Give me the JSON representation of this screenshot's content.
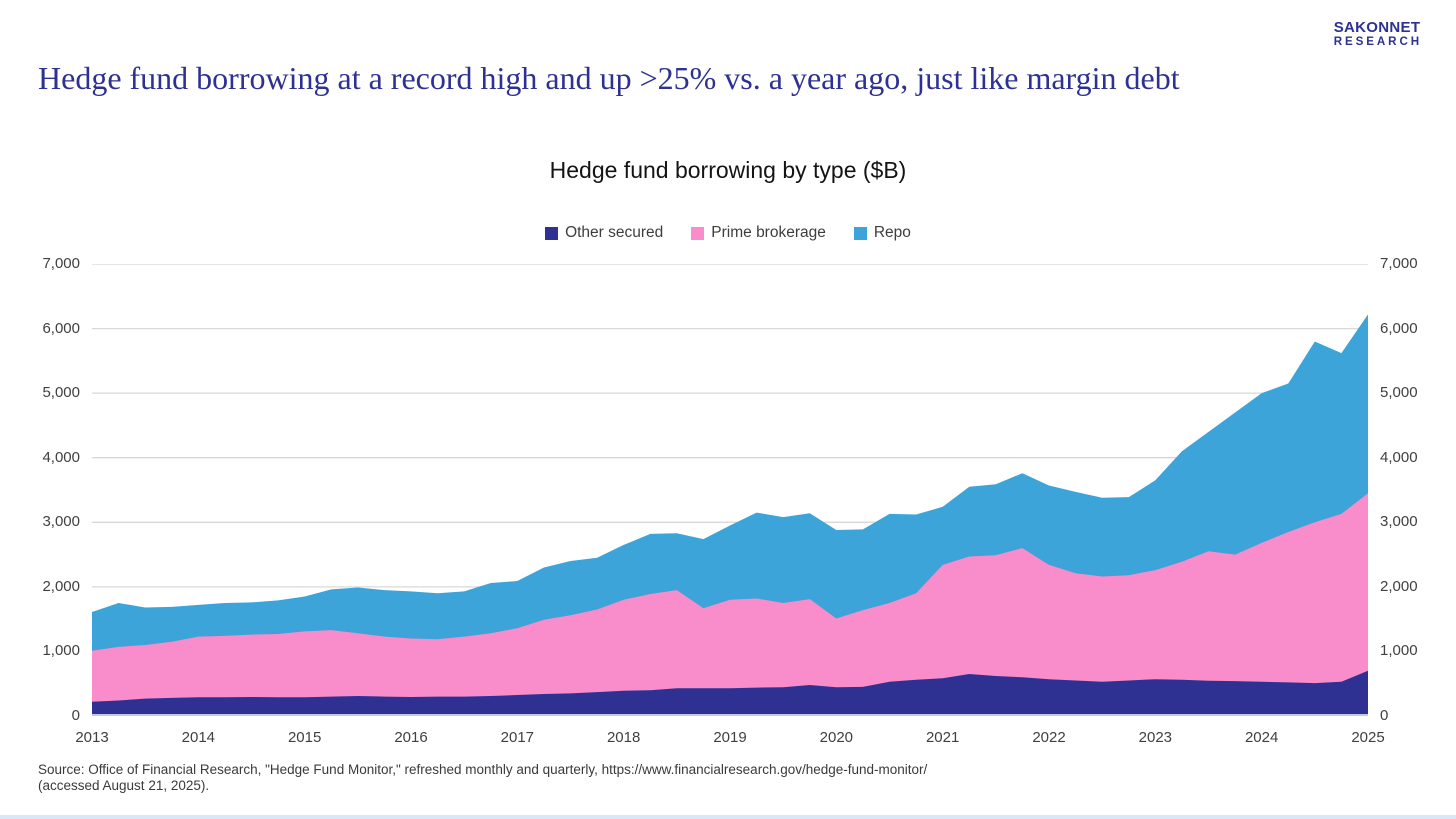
{
  "logo": {
    "line1": "SAKONNET",
    "line2": "RESEARCH"
  },
  "headline": "Hedge fund borrowing at a record high and up >25% vs. a year ago, just like margin debt",
  "chart": {
    "title": "Hedge fund borrowing by type ($B)",
    "legend": [
      {
        "label": "Other secured",
        "color": "#2E3192"
      },
      {
        "label": "Prime brokerage",
        "color": "#F98CCA"
      },
      {
        "label": "Repo",
        "color": "#3CA4D8"
      }
    ]
  },
  "source": "Source: Office of Financial Research, \"Hedge Fund Monitor,\" refreshed monthly and quarterly, https://www.financialresearch.gov/hedge-fund-monitor/ (accessed August 21, 2025).",
  "chart_data": {
    "type": "area",
    "stacked": true,
    "title": "Hedge fund borrowing by type ($B)",
    "x_unit": "year, quarterly observations",
    "x": [
      2013,
      2013.25,
      2013.5,
      2013.75,
      2014,
      2014.25,
      2014.5,
      2014.75,
      2015,
      2015.25,
      2015.5,
      2015.75,
      2016,
      2016.25,
      2016.5,
      2016.75,
      2017,
      2017.25,
      2017.5,
      2017.75,
      2018,
      2018.25,
      2018.5,
      2018.75,
      2019,
      2019.25,
      2019.5,
      2019.75,
      2020,
      2020.25,
      2020.5,
      2020.75,
      2021,
      2021.25,
      2021.5,
      2021.75,
      2022,
      2022.25,
      2022.5,
      2022.75,
      2023,
      2023.25,
      2023.5,
      2023.75,
      2024,
      2024.25,
      2024.5,
      2024.75,
      2025
    ],
    "series": [
      {
        "name": "Other secured",
        "color": "#2E3192",
        "values": [
          220,
          240,
          270,
          280,
          290,
          290,
          295,
          290,
          290,
          300,
          310,
          300,
          295,
          300,
          300,
          310,
          325,
          340,
          350,
          370,
          390,
          400,
          430,
          430,
          430,
          440,
          445,
          480,
          445,
          450,
          530,
          560,
          585,
          650,
          620,
          600,
          570,
          550,
          530,
          550,
          570,
          560,
          545,
          540,
          530,
          520,
          510,
          530,
          700
        ]
      },
      {
        "name": "Prime brokerage",
        "color": "#F98CCA",
        "values": [
          790,
          830,
          830,
          870,
          940,
          950,
          965,
          980,
          1020,
          1030,
          970,
          930,
          905,
          890,
          930,
          970,
          1035,
          1150,
          1210,
          1280,
          1410,
          1490,
          1520,
          1240,
          1370,
          1380,
          1305,
          1330,
          1065,
          1190,
          1220,
          1340,
          1755,
          1820,
          1870,
          2000,
          1770,
          1660,
          1630,
          1630,
          1690,
          1830,
          2005,
          1960,
          2150,
          2330,
          2490,
          2600,
          2750
        ]
      },
      {
        "name": "Repo",
        "color": "#3CA4D8",
        "values": [
          600,
          680,
          580,
          540,
          490,
          510,
          500,
          520,
          540,
          630,
          710,
          720,
          730,
          710,
          700,
          780,
          730,
          810,
          840,
          800,
          850,
          930,
          880,
          1070,
          1150,
          1330,
          1330,
          1330,
          1370,
          1250,
          1380,
          1220,
          900,
          1080,
          1100,
          1160,
          1230,
          1260,
          1220,
          1210,
          1390,
          1710,
          1850,
          2200,
          2320,
          2300,
          2800,
          2490,
          2770
        ]
      }
    ],
    "ylim": [
      0,
      7000
    ],
    "y_ticks": [
      "0",
      "1,000",
      "2,000",
      "3,000",
      "4,000",
      "5,000",
      "6,000",
      "7,000"
    ],
    "x_ticks": [
      "2013",
      "2014",
      "2015",
      "2016",
      "2017",
      "2018",
      "2019",
      "2020",
      "2021",
      "2022",
      "2023",
      "2024",
      "2025"
    ],
    "grid": "horizontal gridlines at each 1,000",
    "legend_position": "top center",
    "y_axis": "both sides"
  }
}
